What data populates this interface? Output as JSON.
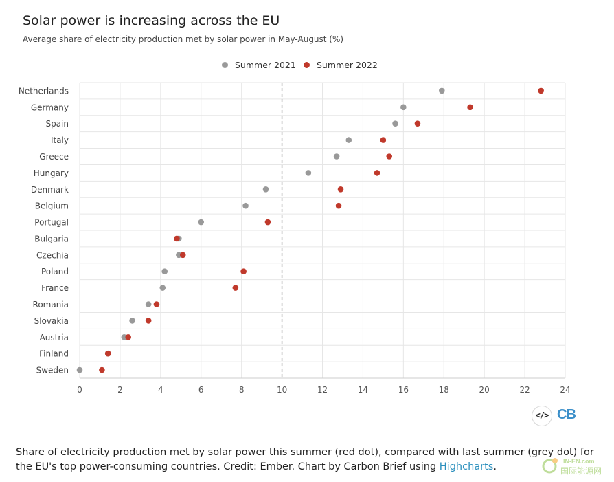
{
  "header": {
    "title": "Solar power is increasing across the EU",
    "subtitle": "Average share of electricity production met by solar power in May-August (%)"
  },
  "legend": {
    "items": [
      {
        "label": "Summer 2021",
        "color": "#999999"
      },
      {
        "label": "Summer 2022",
        "color": "#c0392b"
      }
    ]
  },
  "chart_data": {
    "type": "scatter",
    "title": "Solar power is increasing across the EU",
    "subtitle": "Average share of electricity production met by solar power in May-August (%)",
    "categories": [
      "Netherlands",
      "Germany",
      "Spain",
      "Italy",
      "Greece",
      "Hungary",
      "Denmark",
      "Belgium",
      "Portugal",
      "Bulgaria",
      "Czechia",
      "Poland",
      "France",
      "Romania",
      "Slovakia",
      "Austria",
      "Finland",
      "Sweden"
    ],
    "series": [
      {
        "name": "Summer 2021",
        "color": "#999999",
        "values": [
          17.9,
          16.0,
          15.6,
          13.3,
          12.7,
          11.3,
          9.2,
          8.2,
          6.0,
          4.9,
          4.9,
          4.2,
          4.1,
          3.4,
          2.6,
          2.2,
          1.4,
          0.0
        ]
      },
      {
        "name": "Summer 2022",
        "color": "#c0392b",
        "values": [
          22.8,
          19.3,
          16.7,
          15.0,
          15.3,
          14.7,
          12.9,
          12.8,
          9.3,
          4.8,
          5.1,
          8.1,
          7.7,
          3.8,
          3.4,
          2.4,
          1.4,
          1.1
        ]
      }
    ],
    "xlim": [
      0,
      24
    ],
    "xticks": [
      0,
      2,
      4,
      6,
      8,
      10,
      12,
      14,
      16,
      18,
      20,
      22,
      24
    ],
    "reference_line": 10,
    "xlabel": "",
    "ylabel": "",
    "grid": true,
    "legend_position": "top-center"
  },
  "toolbar": {
    "embed_label": "</>",
    "logo_text": "CB"
  },
  "caption": {
    "text": "Share of electricity production met by solar power this summer (red dot), compared with last summer (grey dot) for the EU's top power-consuming countries. Credit: Ember. Chart by Carbon Brief using ",
    "link": "Highcharts",
    "end": "."
  },
  "watermark": {
    "en": "IN-EN.com",
    "cn": "国际能源网"
  }
}
